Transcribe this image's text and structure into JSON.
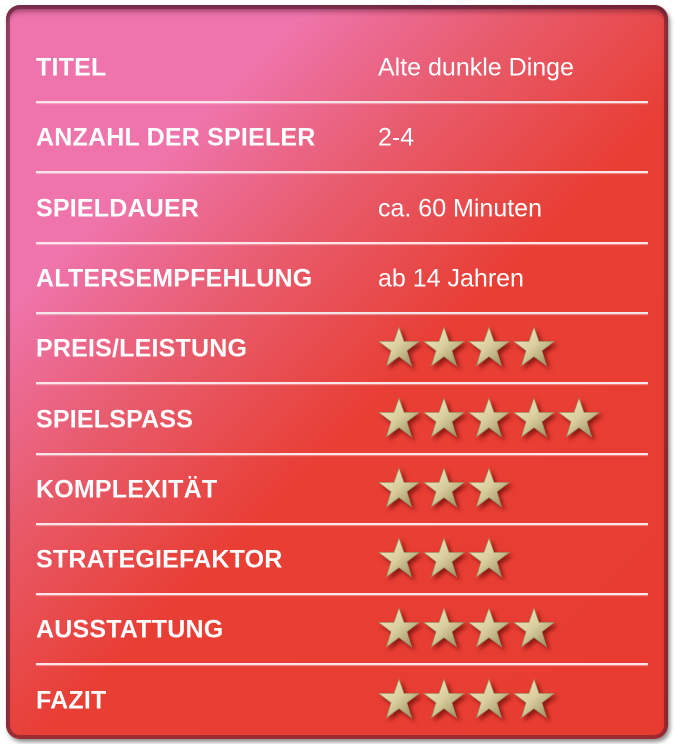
{
  "rows": [
    {
      "label": "TITEL",
      "value": "Alte dunkle Dinge"
    },
    {
      "label": "ANZAHL DER SPIELER",
      "value": "2-4"
    },
    {
      "label": "SPIELDAUER",
      "value": "ca. 60 Minuten"
    },
    {
      "label": "ALTERSEMPFEHLUNG",
      "value": "ab 14 Jahren"
    },
    {
      "label": "PREIS/LEISTUNG",
      "stars": 4
    },
    {
      "label": "SPIELSPASS",
      "stars": 5
    },
    {
      "label": "KOMPLEXITÄT",
      "stars": 3
    },
    {
      "label": "STRATEGIEFAKTOR",
      "stars": 3
    },
    {
      "label": "AUSSTATTUNG",
      "stars": 4
    },
    {
      "label": "FAZIT",
      "stars": 4
    }
  ],
  "colors": {
    "background_top_left": "#ee74ab",
    "background": "#e83c30",
    "star": "#d8cc9a",
    "text": "#ffffff"
  },
  "icons": {
    "rating": "star-icon"
  }
}
